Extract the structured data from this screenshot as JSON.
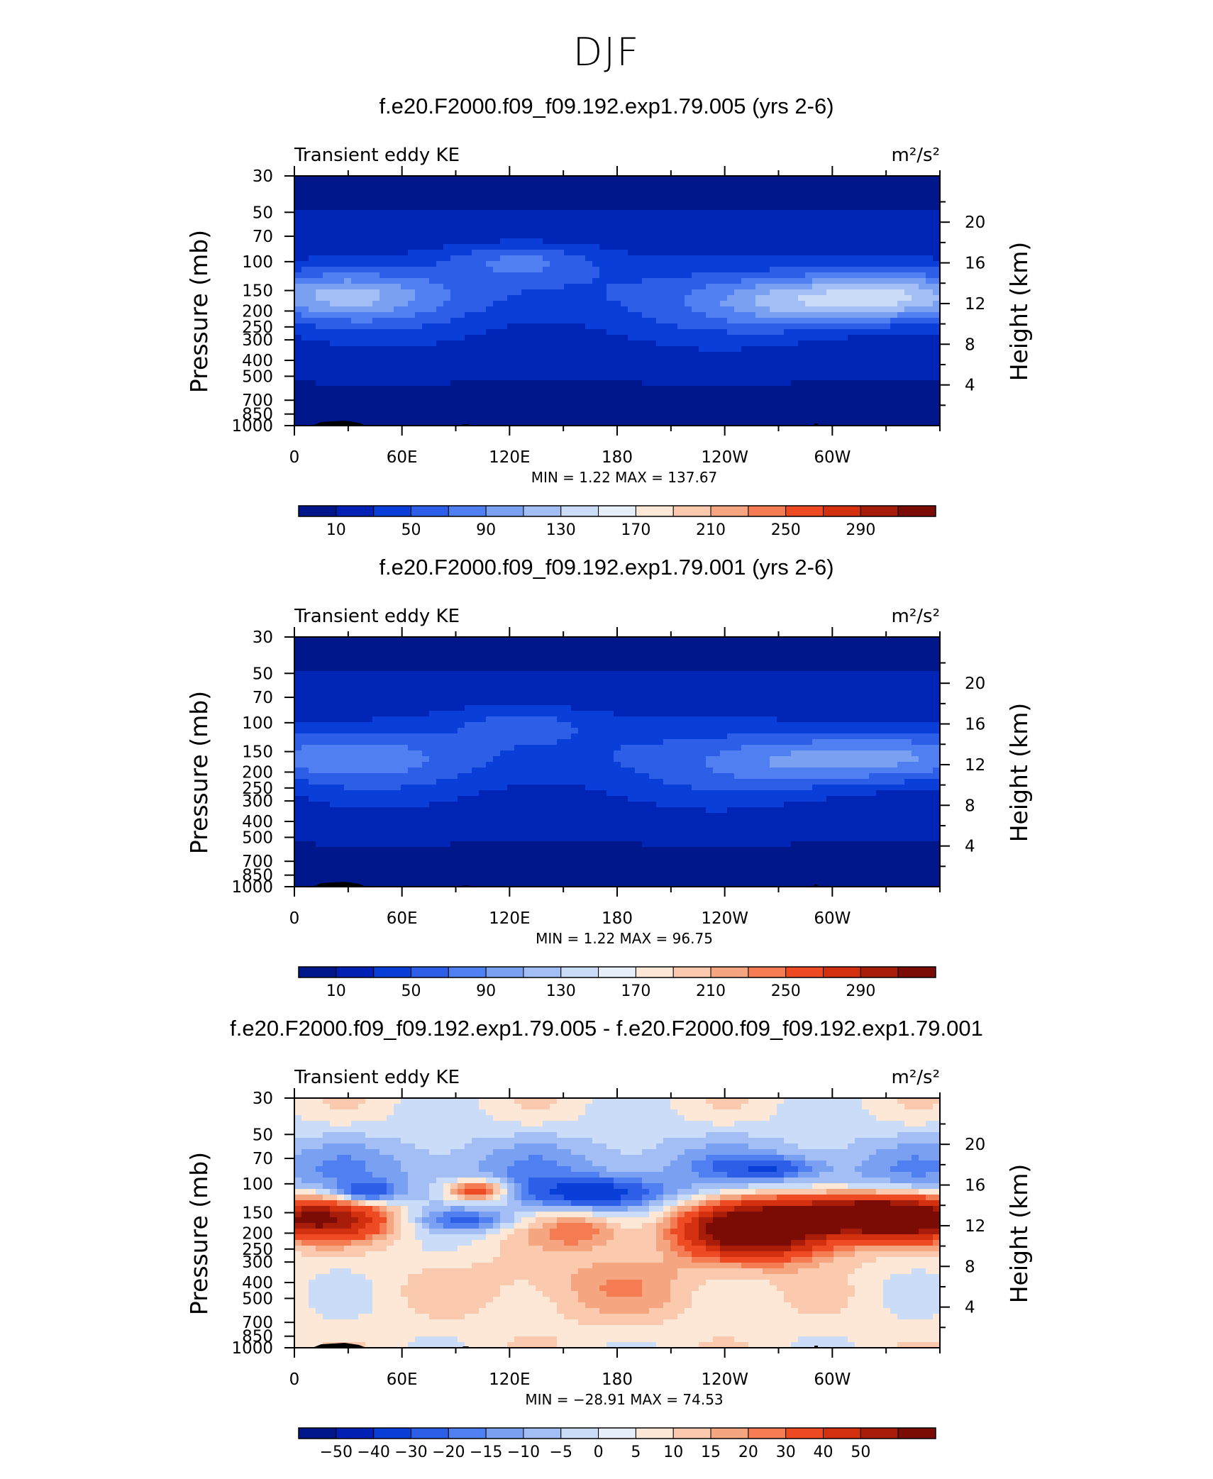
{
  "season": "DJF",
  "panels": [
    {
      "title": "f.e20.F2000.f09_f09.192.exp1.79.005 (yrs 2-6)",
      "label_left": "Transient eddy KE",
      "units": "m²/s²",
      "stats": "MIN =     1.22   MAX =  137.67",
      "scale": "abs"
    },
    {
      "title": "f.e20.F2000.f09_f09.192.exp1.79.001 (yrs 2-6)",
      "label_left": "Transient eddy KE",
      "units": "m²/s²",
      "stats": "MIN =     1.22   MAX =   96.75",
      "scale": "abs"
    },
    {
      "title": "f.e20.F2000.f09_f09.192.exp1.79.005 - f.e20.F2000.f09_f09.192.exp1.79.001",
      "label_left": "Transient eddy KE",
      "units": "m²/s²",
      "stats": "MIN =  −28.91   MAX =   74.53",
      "scale": "diff"
    }
  ],
  "chart_data": {
    "type": "heatmap",
    "x_ticks": [
      "0",
      "60E",
      "120E",
      "180",
      "120W",
      "60W"
    ],
    "xlim": [
      0,
      360
    ],
    "y_ticks_left": [
      "30",
      "50",
      "70",
      "100",
      "150",
      "200",
      "250",
      "300",
      "400",
      "500",
      "700",
      "850",
      "1000"
    ],
    "y_ticks_right": [
      "20",
      "16",
      "12",
      "8",
      "4"
    ],
    "ylabel_left": "Pressure (mb)",
    "ylabel_right": "Height (km)",
    "y_scale": "log pressure",
    "ylim": [
      1000,
      30
    ],
    "colorbars": {
      "abs": {
        "labels": [
          "10",
          "50",
          "90",
          "130",
          "170",
          "210",
          "250",
          "290"
        ],
        "colors": [
          "#00178c",
          "#0021b4",
          "#0a3ed8",
          "#2d5ee8",
          "#4f7ff0",
          "#7aa0f2",
          "#a2bef5",
          "#cbdcf8",
          "#e6eefa",
          "#fde8d8",
          "#fbc9ad",
          "#f6a581",
          "#f47b52",
          "#ee4a24",
          "#d2300f",
          "#a81c0a",
          "#7a0c05"
        ]
      },
      "diff": {
        "labels": [
          "−50",
          "−40",
          "−30",
          "−20",
          "−15",
          "−10",
          "−5",
          "0",
          "5",
          "10",
          "15",
          "20",
          "30",
          "40",
          "50"
        ],
        "colors": [
          "#00178c",
          "#0021b4",
          "#0a3ed8",
          "#2d5ee8",
          "#4f7ff0",
          "#7aa0f2",
          "#a2bef5",
          "#cbdcf8",
          "#e6eefa",
          "#fde8d8",
          "#fbc9ad",
          "#f6a581",
          "#f47b52",
          "#ee4a24",
          "#d2300f",
          "#a81c0a",
          "#7a0c05"
        ]
      }
    }
  }
}
